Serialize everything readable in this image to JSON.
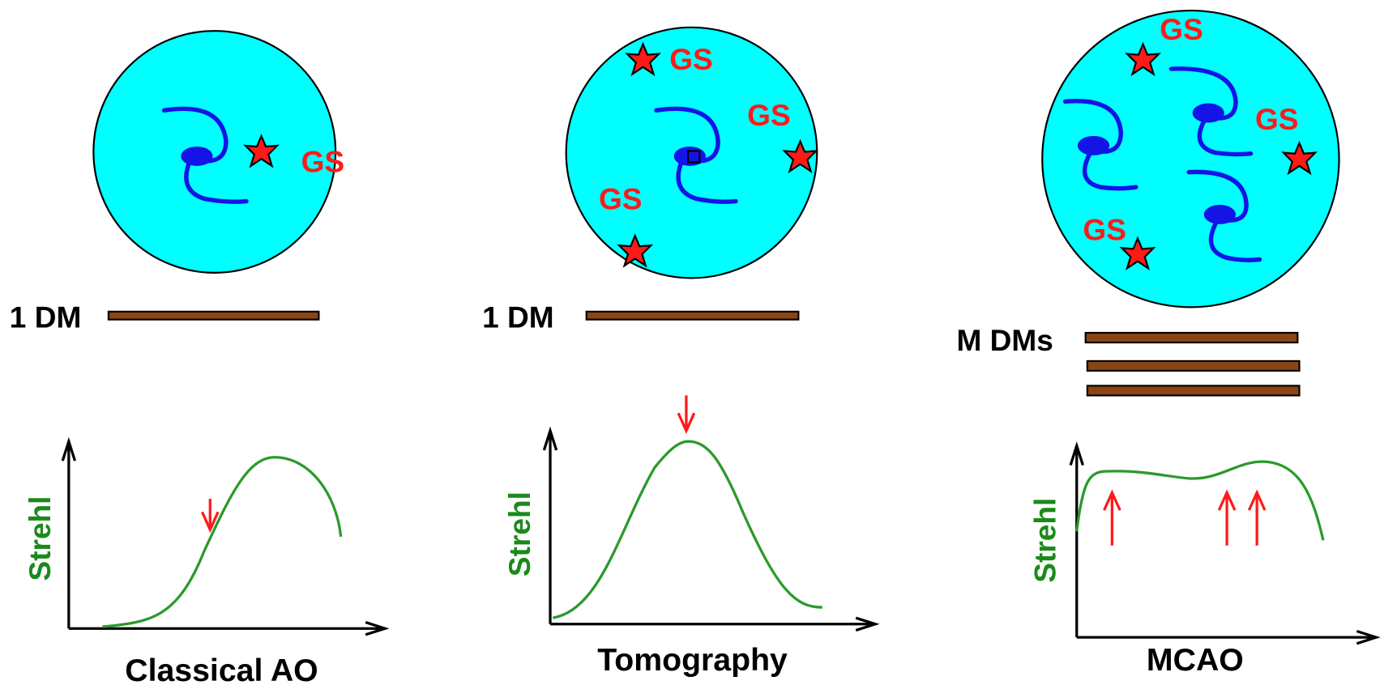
{
  "panels": [
    {
      "guide_star_labels": [
        "GS"
      ],
      "dm_label": "1 DM",
      "y_axis_label": "Strehl",
      "caption": "Classical AO"
    },
    {
      "guide_star_labels": [
        "GS",
        "GS",
        "GS"
      ],
      "dm_label": "1 DM",
      "y_axis_label": "Strehl",
      "caption": "Tomography"
    },
    {
      "guide_star_labels": [
        "GS",
        "GS",
        "GS"
      ],
      "dm_label": "M DMs",
      "y_axis_label": "Strehl",
      "caption": "MCAO"
    }
  ]
}
